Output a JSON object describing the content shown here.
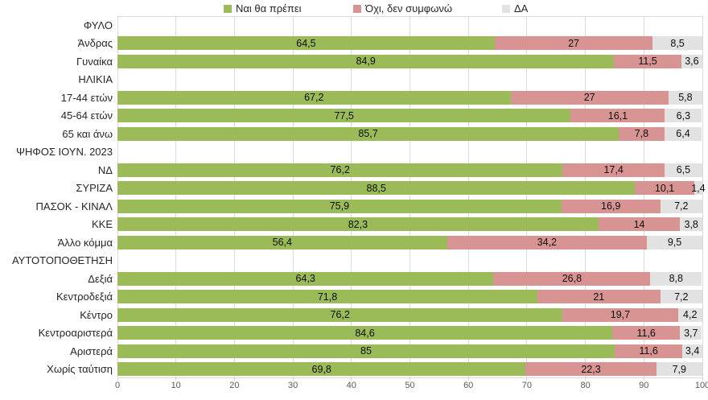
{
  "chart_data": {
    "type": "bar",
    "orientation": "horizontal",
    "stacked": true,
    "title": "",
    "xlabel": "",
    "ylabel": "",
    "xlim": [
      0,
      100
    ],
    "grid": true,
    "legend_position": "top",
    "x_ticks": [
      "0",
      "10",
      "20",
      "30",
      "40",
      "50",
      "60",
      "70",
      "80",
      "90",
      "100"
    ],
    "series": [
      {
        "name": "Ναι θα πρέπει",
        "color": "#9bbb59"
      },
      {
        "name": "Όχι, δεν συμφωνώ",
        "color": "#d89492"
      },
      {
        "name": "ΔΑ",
        "color": "#e2e2e2"
      }
    ],
    "rows": [
      {
        "label": "ΦΥΛΟ",
        "header": true
      },
      {
        "label": "Άνδρας",
        "values": [
          64.5,
          27,
          8.5
        ],
        "display": [
          "64,5",
          "27",
          "8,5"
        ]
      },
      {
        "label": "Γυναίκα",
        "values": [
          84.9,
          11.5,
          3.6
        ],
        "display": [
          "84,9",
          "11,5",
          "3,6"
        ]
      },
      {
        "label": "ΗΛΙΚΙΑ",
        "header": true
      },
      {
        "label": "17-44 ετών",
        "values": [
          67.2,
          27,
          5.8
        ],
        "display": [
          "67,2",
          "27",
          "5,8"
        ]
      },
      {
        "label": "45-64 ετών",
        "values": [
          77.5,
          16.1,
          6.3
        ],
        "display": [
          "77,5",
          "16,1",
          "6,3"
        ]
      },
      {
        "label": "65 και άνω",
        "values": [
          85.7,
          7.8,
          6.4
        ],
        "display": [
          "85,7",
          "7,8",
          "6,4"
        ]
      },
      {
        "label": "ΨΗΦΟΣ ΙΟΥΝ. 2023",
        "header": true
      },
      {
        "label": "ΝΔ",
        "values": [
          76.2,
          17.4,
          6.5
        ],
        "display": [
          "76,2",
          "17,4",
          "6,5"
        ]
      },
      {
        "label": "ΣΥΡΙΖΑ",
        "values": [
          88.5,
          10.1,
          1.4
        ],
        "display": [
          "88,5",
          "10,1",
          "1,4"
        ]
      },
      {
        "label": "ΠΑΣΟΚ - ΚΙΝΑΛ",
        "values": [
          75.9,
          16.9,
          7.2
        ],
        "display": [
          "75,9",
          "16,9",
          "7,2"
        ]
      },
      {
        "label": "ΚΚΕ",
        "values": [
          82.3,
          14,
          3.8
        ],
        "display": [
          "82,3",
          "14",
          "3,8"
        ]
      },
      {
        "label": "Άλλο κόμμα",
        "values": [
          56.4,
          34.2,
          9.5
        ],
        "display": [
          "56,4",
          "34,2",
          "9,5"
        ]
      },
      {
        "label": "ΑΥΤΟΤΟΠΟΘΕΤΗΣΗ",
        "header": true
      },
      {
        "label": "Δεξιά",
        "values": [
          64.3,
          26.8,
          8.8
        ],
        "display": [
          "64,3",
          "26,8",
          "8,8"
        ]
      },
      {
        "label": "Κεντροδεξιά",
        "values": [
          71.8,
          21,
          7.2
        ],
        "display": [
          "71,8",
          "21",
          "7,2"
        ]
      },
      {
        "label": "Κέντρο",
        "values": [
          76.2,
          19.7,
          4.2
        ],
        "display": [
          "76,2",
          "19,7",
          "4,2"
        ]
      },
      {
        "label": "Κεντροαριστερά",
        "values": [
          84.6,
          11.6,
          3.7
        ],
        "display": [
          "84,6",
          "11,6",
          "3,7"
        ]
      },
      {
        "label": "Αριστερά",
        "values": [
          85,
          11.6,
          3.4
        ],
        "display": [
          "85",
          "11,6",
          "3,4"
        ]
      },
      {
        "label": "Χωρίς ταύτιση",
        "values": [
          69.8,
          22.3,
          7.9
        ],
        "display": [
          "69,8",
          "22,3",
          "7,9"
        ]
      }
    ],
    "colors": {
      "gridline": "#d9d9d9",
      "axis_text": "#595959",
      "label_text": "#262626"
    }
  }
}
